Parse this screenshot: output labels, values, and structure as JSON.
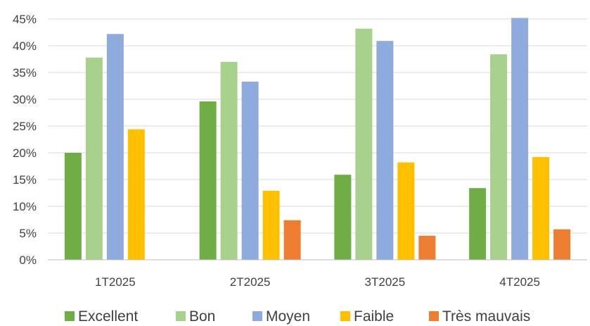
{
  "chart_data": {
    "type": "bar",
    "categories": [
      "1T2025",
      "2T2025",
      "3T2025",
      "4T2025"
    ],
    "series": [
      {
        "name": "Excellent",
        "color": "#70ad47",
        "values": [
          20.0,
          29.6,
          15.9,
          13.4
        ]
      },
      {
        "name": "Bon",
        "color": "#a9d18e",
        "values": [
          37.8,
          37.0,
          43.2,
          38.4
        ]
      },
      {
        "name": "Moyen",
        "color": "#8faadc",
        "values": [
          42.2,
          33.3,
          40.9,
          45.2
        ]
      },
      {
        "name": "Faible",
        "color": "#ffc000",
        "values": [
          24.4,
          12.9,
          18.2,
          19.2
        ]
      },
      {
        "name": "Très mauvais",
        "color": "#ed7d31",
        "values": [
          0,
          7.4,
          4.5,
          5.7
        ]
      }
    ],
    "y_ticks": [
      "0%",
      "5%",
      "10%",
      "15%",
      "20%",
      "25%",
      "30%",
      "35%",
      "40%",
      "45%"
    ],
    "ylim": [
      0,
      45
    ],
    "grid": true,
    "legend_position": "bottom"
  }
}
